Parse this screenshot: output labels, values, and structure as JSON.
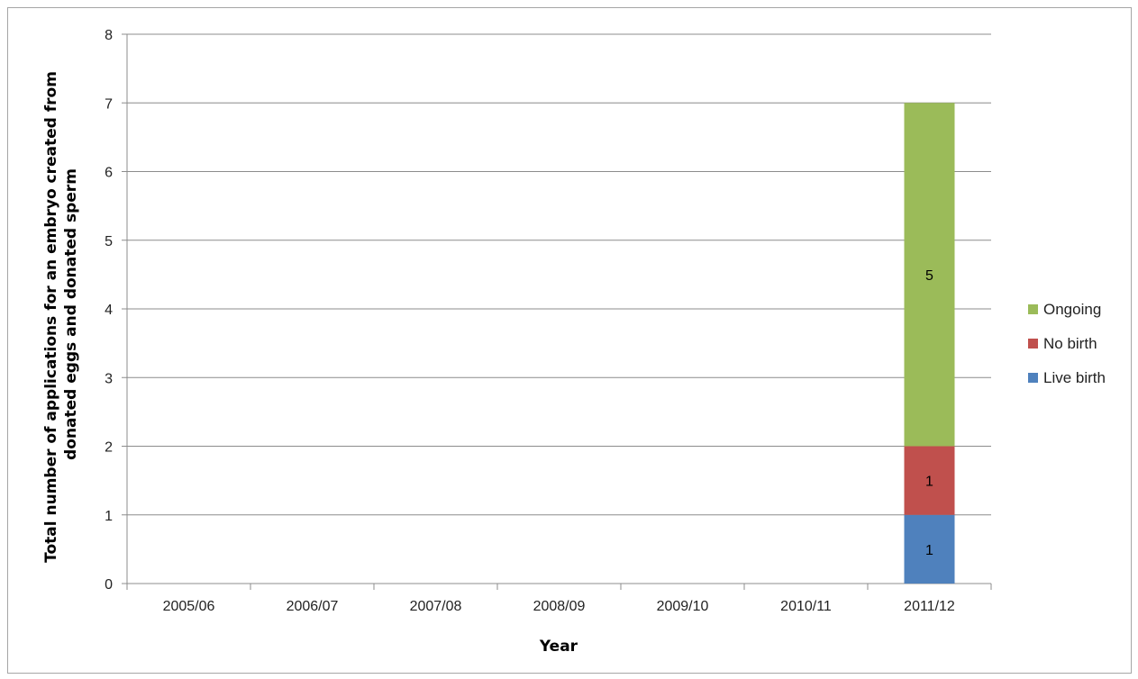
{
  "chart_data": {
    "type": "bar",
    "stacked": true,
    "categories": [
      "2005/06",
      "2006/07",
      "2007/08",
      "2008/09",
      "2009/10",
      "2010/11",
      "2011/12"
    ],
    "series": [
      {
        "name": "Live birth",
        "color": "#4f81bd",
        "values": [
          0,
          0,
          0,
          0,
          0,
          0,
          1
        ]
      },
      {
        "name": "No birth",
        "color": "#c0504d",
        "values": [
          0,
          0,
          0,
          0,
          0,
          0,
          1
        ]
      },
      {
        "name": "Ongoing",
        "color": "#9bbb59",
        "values": [
          0,
          0,
          0,
          0,
          0,
          0,
          5
        ]
      }
    ],
    "xlabel": "Year",
    "ylabel_lines": [
      "Total number of  applications for an embryo created from",
      "donated eggs and donated sperm"
    ],
    "ylim": [
      0,
      8
    ],
    "yticks": [
      0,
      1,
      2,
      3,
      4,
      5,
      6,
      7,
      8
    ],
    "grid": true,
    "legend_position": "right",
    "legend_order": [
      "Ongoing",
      "No birth",
      "Live birth"
    ]
  }
}
